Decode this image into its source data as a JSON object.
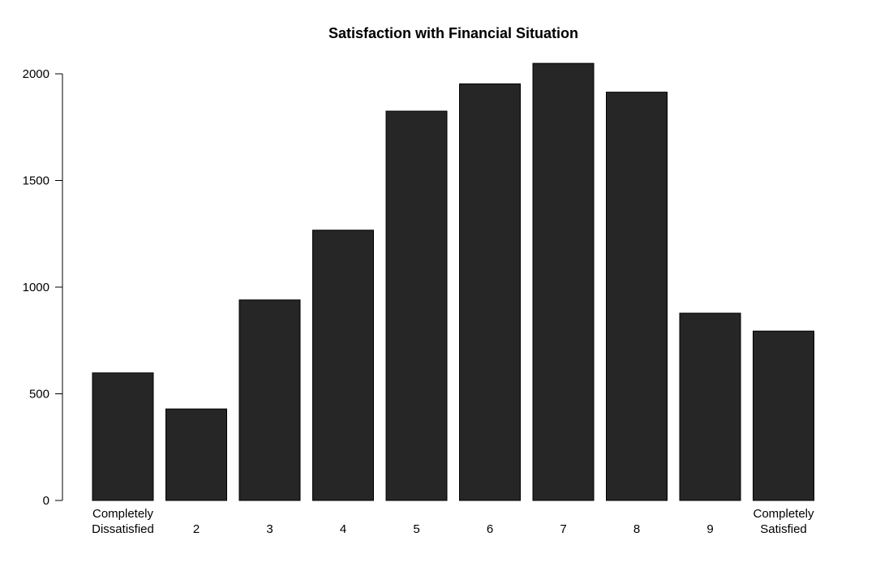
{
  "chart_data": {
    "type": "bar",
    "title": "Satisfaction with Financial Situation",
    "xlabel": "",
    "ylabel": "",
    "categories": [
      [
        "Completely",
        "Dissatisfied"
      ],
      [
        "2"
      ],
      [
        "3"
      ],
      [
        "4"
      ],
      [
        "5"
      ],
      [
        "6"
      ],
      [
        "7"
      ],
      [
        "8"
      ],
      [
        "9"
      ],
      [
        "Completely",
        "Satisfied"
      ]
    ],
    "values": [
      598,
      429,
      940,
      1267,
      1825,
      1953,
      2049,
      1914,
      878,
      794
    ],
    "ylim": [
      0,
      2000
    ],
    "yticks": [
      0,
      500,
      1000,
      1500,
      2000
    ],
    "bar_color": "#262626",
    "grid": false,
    "legend": "none"
  }
}
